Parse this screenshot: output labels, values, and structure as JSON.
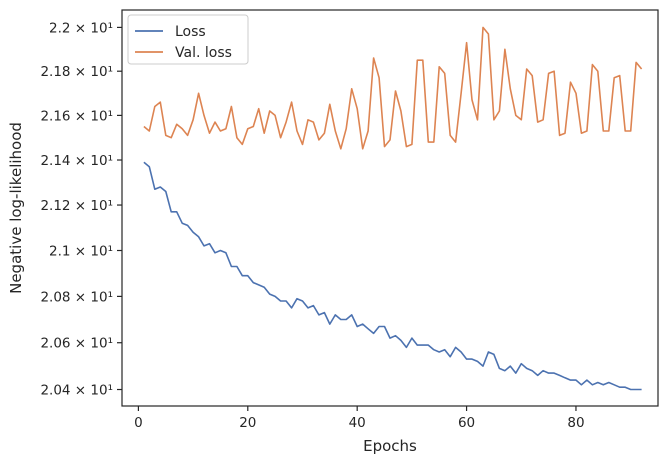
{
  "chart_data": {
    "type": "line",
    "xlabel": "Epochs",
    "ylabel": "Negative log-likelihood",
    "xlim": [
      -3,
      95
    ],
    "ylim": [
      20.33,
      22.08
    ],
    "x_ticks": [
      0,
      20,
      40,
      60,
      80
    ],
    "x_tick_labels": [
      "0",
      "20",
      "40",
      "60",
      "80"
    ],
    "y_ticks": [
      20.4,
      20.6,
      20.8,
      21.0,
      21.2,
      21.4,
      21.6,
      21.8,
      22.0
    ],
    "y_tick_labels": [
      "2.04 × 10¹",
      "2.06 × 10¹",
      "2.08 × 10¹",
      "2.1 × 10¹",
      "2.12 × 10¹",
      "2.14 × 10¹",
      "2.16 × 10¹",
      "2.18 × 10¹",
      "2.2 × 10¹"
    ],
    "x_scale": "linear",
    "y_scale": "log",
    "grid": false,
    "legend_position": "top-left",
    "series": [
      {
        "name": "Loss",
        "color": "#4c72b0",
        "x": [
          1,
          2,
          3,
          4,
          5,
          6,
          7,
          8,
          9,
          10,
          11,
          12,
          13,
          14,
          15,
          16,
          17,
          18,
          19,
          20,
          21,
          22,
          23,
          24,
          25,
          26,
          27,
          28,
          29,
          30,
          31,
          32,
          33,
          34,
          35,
          36,
          37,
          38,
          39,
          40,
          41,
          42,
          43,
          44,
          45,
          46,
          47,
          48,
          49,
          50,
          51,
          52,
          53,
          54,
          55,
          56,
          57,
          58,
          59,
          60,
          61,
          62,
          63,
          64,
          65,
          66,
          67,
          68,
          69,
          70,
          71,
          72,
          73,
          74,
          75,
          76,
          77,
          78,
          79,
          80,
          81,
          82,
          83,
          84,
          85,
          86,
          87,
          88,
          89,
          90,
          91,
          92
        ],
        "y": [
          21.39,
          21.37,
          21.27,
          21.28,
          21.26,
          21.17,
          21.17,
          21.12,
          21.11,
          21.08,
          21.06,
          21.02,
          21.03,
          20.99,
          21.0,
          20.99,
          20.93,
          20.93,
          20.89,
          20.89,
          20.86,
          20.85,
          20.84,
          20.81,
          20.8,
          20.78,
          20.78,
          20.75,
          20.79,
          20.78,
          20.75,
          20.76,
          20.72,
          20.73,
          20.68,
          20.72,
          20.7,
          20.7,
          20.72,
          20.67,
          20.68,
          20.66,
          20.64,
          20.67,
          20.67,
          20.62,
          20.63,
          20.61,
          20.58,
          20.62,
          20.59,
          20.59,
          20.59,
          20.57,
          20.56,
          20.57,
          20.54,
          20.58,
          20.56,
          20.53,
          20.53,
          20.52,
          20.5,
          20.56,
          20.55,
          20.49,
          20.48,
          20.5,
          20.47,
          20.51,
          20.49,
          20.48,
          20.46,
          20.48,
          20.47,
          20.47,
          20.46,
          20.45,
          20.44,
          20.44,
          20.42,
          20.44,
          20.42,
          20.43,
          20.42,
          20.43,
          20.42,
          20.41,
          20.41,
          20.4,
          20.4,
          20.4
        ]
      },
      {
        "name": "Val. loss",
        "color": "#dd8452",
        "x": [
          1,
          2,
          3,
          4,
          5,
          6,
          7,
          8,
          9,
          10,
          11,
          12,
          13,
          14,
          15,
          16,
          17,
          18,
          19,
          20,
          21,
          22,
          23,
          24,
          25,
          26,
          27,
          28,
          29,
          30,
          31,
          32,
          33,
          34,
          35,
          36,
          37,
          38,
          39,
          40,
          41,
          42,
          43,
          44,
          45,
          46,
          47,
          48,
          49,
          50,
          51,
          52,
          53,
          54,
          55,
          56,
          57,
          58,
          59,
          60,
          61,
          62,
          63,
          64,
          65,
          66,
          67,
          68,
          69,
          70,
          71,
          72,
          73,
          74,
          75,
          76,
          77,
          78,
          79,
          80,
          81,
          82,
          83,
          84,
          85,
          86,
          87,
          88,
          89,
          90,
          91,
          92
        ],
        "y": [
          21.55,
          21.53,
          21.64,
          21.66,
          21.51,
          21.5,
          21.56,
          21.54,
          21.51,
          21.58,
          21.7,
          21.6,
          21.52,
          21.57,
          21.53,
          21.54,
          21.64,
          21.5,
          21.47,
          21.54,
          21.55,
          21.63,
          21.52,
          21.62,
          21.6,
          21.5,
          21.57,
          21.66,
          21.53,
          21.47,
          21.58,
          21.57,
          21.49,
          21.52,
          21.65,
          21.53,
          21.45,
          21.54,
          21.72,
          21.63,
          21.45,
          21.53,
          21.86,
          21.77,
          21.46,
          21.49,
          21.71,
          21.62,
          21.46,
          21.47,
          21.85,
          21.85,
          21.48,
          21.48,
          21.82,
          21.79,
          21.51,
          21.48,
          21.7,
          21.93,
          21.67,
          21.58,
          22.0,
          21.97,
          21.58,
          21.62,
          21.9,
          21.72,
          21.6,
          21.58,
          21.81,
          21.78,
          21.57,
          21.58,
          21.79,
          21.8,
          21.51,
          21.52,
          21.75,
          21.7,
          21.52,
          21.53,
          21.83,
          21.8,
          21.53,
          21.53,
          21.77,
          21.78,
          21.53,
          21.53,
          21.84,
          21.81
        ]
      }
    ]
  }
}
